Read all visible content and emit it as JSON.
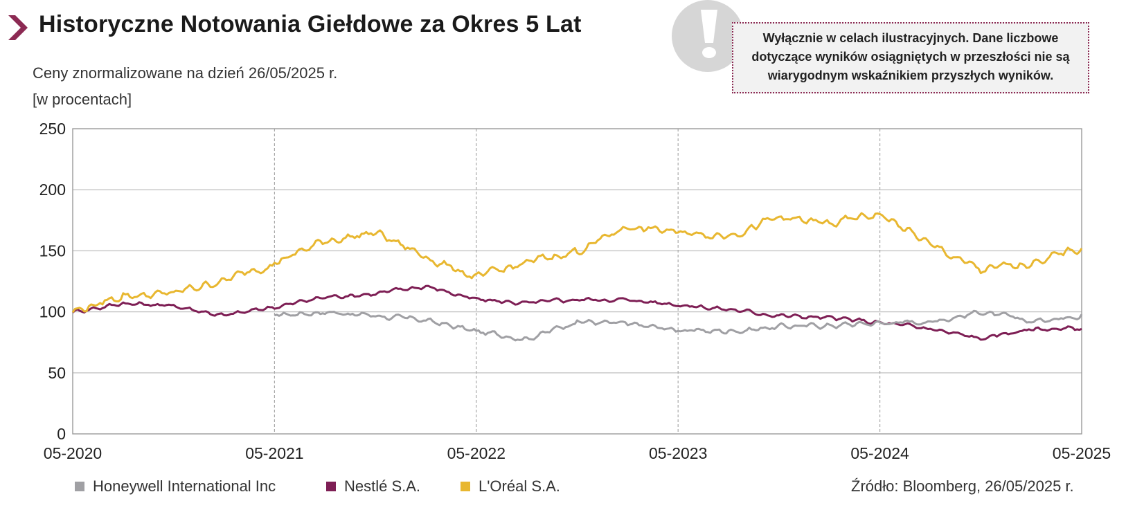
{
  "title": "Historyczne Notowania Giełdowe za Okres 5 Lat",
  "subtitle": "Ceny znormalizowane na dzień 26/05/2025 r.",
  "unit_label": "[w procentach]",
  "disclaimer": "Wyłącznie w celach ilustracyjnych. Dane liczbowe dotyczące wyników osiągniętych w przeszłości nie są wiarygodnym wskaźnikiem przyszłych wyników.",
  "warning_icon": "exclamation-icon",
  "source": "Źródło: Bloomberg, 26/05/2025 r.",
  "colors": {
    "accent": "#8c2a53",
    "honeywell": "#a0a0a4",
    "nestle": "#7e1f55",
    "loreal": "#e8b730",
    "grid": "#c4c4c4"
  },
  "chart_data": {
    "type": "line",
    "xlabel": "",
    "ylabel": "",
    "x_ticks": [
      "05-2020",
      "05-2021",
      "05-2022",
      "05-2023",
      "05-2024",
      "05-2025"
    ],
    "x_range": [
      "2020-05",
      "2025-05"
    ],
    "ylim": [
      0,
      250
    ],
    "y_ticks": [
      0,
      50,
      100,
      150,
      200,
      250
    ],
    "grid": true,
    "legend_position": "bottom-left",
    "x": [
      "2020-05",
      "2020-08",
      "2020-11",
      "2021-02",
      "2021-05",
      "2021-08",
      "2021-11",
      "2022-02",
      "2022-05",
      "2022-08",
      "2022-11",
      "2023-02",
      "2023-05",
      "2023-08",
      "2023-11",
      "2024-02",
      "2024-05",
      "2024-08",
      "2024-11",
      "2025-02",
      "2025-05"
    ],
    "series": [
      {
        "name": "Honeywell International Inc",
        "values": [
          null,
          null,
          null,
          null,
          97,
          100,
          97,
          93,
          84,
          78,
          92,
          90,
          85,
          84,
          88,
          89,
          91,
          92,
          100,
          92,
          98
        ]
      },
      {
        "name": "Nestlé S.A.",
        "values": [
          100,
          107,
          105,
          97,
          104,
          112,
          115,
          121,
          110,
          107,
          110,
          110,
          106,
          102,
          97,
          95,
          91,
          86,
          78,
          86,
          86
        ]
      },
      {
        "name": "L'Oréal S.A.",
        "values": [
          100,
          113,
          115,
          126,
          140,
          158,
          165,
          145,
          128,
          140,
          150,
          170,
          165,
          163,
          177,
          172,
          180,
          155,
          134,
          140,
          152
        ]
      }
    ]
  }
}
